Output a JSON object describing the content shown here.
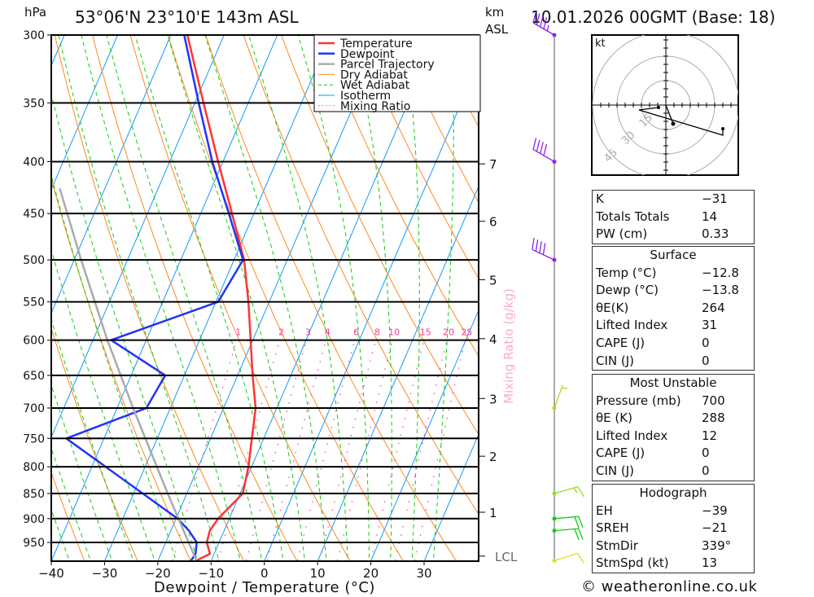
{
  "header": {
    "pressure_unit": "hPa",
    "location": "53°06'N 23°10'E 143m ASL",
    "km_label": "km",
    "asl_label": "ASL",
    "datetime": "10.01.2026 00GMT (Base: 18)"
  },
  "chart_data": {
    "type": "line",
    "title": "53°06'N 23°10'E 143m ASL",
    "xlabel": "Dewpoint / Temperature (°C)",
    "ylabel": "hPa",
    "xlim": [
      -40,
      40
    ],
    "ylim": [
      990,
      300
    ],
    "x_ticks": [
      "−40",
      "−30",
      "−20",
      "−10",
      "0",
      "10",
      "20",
      "30"
    ],
    "x_tick_values": [
      -40,
      -30,
      -20,
      -10,
      0,
      10,
      20,
      30
    ],
    "p_ticks": [
      "300",
      "350",
      "400",
      "450",
      "500",
      "550",
      "600",
      "650",
      "700",
      "750",
      "800",
      "850",
      "900",
      "950"
    ],
    "p_tick_values": [
      300,
      350,
      400,
      450,
      500,
      550,
      600,
      650,
      700,
      750,
      800,
      850,
      900,
      950
    ],
    "km_ticks": [
      {
        "label": "7",
        "p": 402
      },
      {
        "label": "6",
        "p": 458
      },
      {
        "label": "5",
        "p": 523
      },
      {
        "label": "4",
        "p": 598
      },
      {
        "label": "3",
        "p": 685
      },
      {
        "label": "2",
        "p": 781
      },
      {
        "label": "1",
        "p": 887
      },
      {
        "label": "LCL",
        "p": 980
      }
    ],
    "legend": [
      {
        "label": "Temperature",
        "color": "#ff3333",
        "style": "thick"
      },
      {
        "label": "Dewpoint",
        "color": "#2233ff",
        "style": "thick"
      },
      {
        "label": "Parcel Trajectory",
        "color": "#aaaaaa",
        "style": "thick"
      },
      {
        "label": "Dry Adiabat",
        "color": "#ff8822",
        "style": "thin"
      },
      {
        "label": "Wet Adiabat",
        "color": "#11cc11",
        "style": "dashed"
      },
      {
        "label": "Isotherm",
        "color": "#1199ff",
        "style": "thin"
      },
      {
        "label": "Mixing Ratio",
        "color": "#ff3399",
        "style": "dotted"
      }
    ],
    "series": [
      {
        "name": "Temperature",
        "color": "#ff3333",
        "points": [
          [
            990,
            -12.8
          ],
          [
            975,
            -10.8
          ],
          [
            950,
            -12.3
          ],
          [
            925,
            -12.7
          ],
          [
            900,
            -12.1
          ],
          [
            850,
            -9.5
          ],
          [
            800,
            -10.6
          ],
          [
            700,
            -14.0
          ],
          [
            650,
            -17.2
          ],
          [
            600,
            -20.4
          ],
          [
            550,
            -23.9
          ],
          [
            500,
            -28.1
          ],
          [
            450,
            -34.1
          ],
          [
            400,
            -40.9
          ],
          [
            350,
            -48.4
          ],
          [
            300,
            -56.9
          ]
        ]
      },
      {
        "name": "Dewpoint",
        "color": "#2233ff",
        "points": [
          [
            990,
            -13.8
          ],
          [
            975,
            -13.5
          ],
          [
            950,
            -14.2
          ],
          [
            925,
            -16.6
          ],
          [
            900,
            -19.7
          ],
          [
            750,
            -47.1
          ],
          [
            700,
            -34.5
          ],
          [
            650,
            -33.6
          ],
          [
            600,
            -46.6
          ],
          [
            550,
            -29.6
          ],
          [
            500,
            -28.3
          ],
          [
            450,
            -34.7
          ],
          [
            400,
            -42.0
          ],
          [
            350,
            -49.3
          ],
          [
            300,
            -57.5
          ]
        ]
      },
      {
        "name": "Parcel Trajectory",
        "color": "#aaaaaa",
        "points": [
          [
            990,
            -12.8
          ],
          [
            850,
            -23.6
          ],
          [
            700,
            -37.0
          ],
          [
            600,
            -47.3
          ],
          [
            500,
            -58.7
          ],
          [
            425,
            -68.5
          ]
        ]
      }
    ],
    "isotherms": [
      -110,
      -100,
      -90,
      -80,
      -70,
      -60,
      -50,
      -40,
      -30,
      -20,
      -10,
      0,
      10,
      20,
      30,
      40
    ],
    "dry_adiabats_theta_k": [
      230,
      240,
      250,
      260,
      270,
      280,
      290,
      300,
      310,
      320,
      330,
      340,
      350,
      360,
      370,
      380,
      390,
      400,
      410,
      420,
      430,
      440,
      450
    ],
    "wet_adiabats_t1000": [
      -40,
      -36,
      -32,
      -28,
      -24,
      -20,
      -16,
      -12,
      -8,
      -4,
      0,
      4,
      8,
      12,
      16,
      20,
      24,
      28,
      32
    ],
    "mixing_ratios": [
      "1",
      "2",
      "3",
      "4",
      "6",
      "8",
      "10",
      "15",
      "20",
      "25"
    ],
    "mixing_ratio_label": "Mixing Ratio (g/kg)",
    "winds": [
      {
        "p": 300,
        "dir": 300,
        "spd": 45,
        "color": "#8822ee"
      },
      {
        "p": 400,
        "dir": 300,
        "spd": 40,
        "color": "#8822ee"
      },
      {
        "p": 500,
        "dir": 295,
        "spd": 40,
        "color": "#8822ee"
      },
      {
        "p": 700,
        "dir": 20,
        "spd": 5,
        "color": "#aadd22"
      },
      {
        "p": 850,
        "dir": 74,
        "spd": 15,
        "color": "#99dd22"
      },
      {
        "p": 900,
        "dir": 85,
        "spd": 20,
        "color": "#11cc11"
      },
      {
        "p": 925,
        "dir": 85,
        "spd": 20,
        "color": "#11cc11"
      },
      {
        "p": 990,
        "dir": 73,
        "spd": 10,
        "color": "#dddd22"
      }
    ],
    "hodograph": {
      "unit": "kt",
      "rings": [
        "15",
        "30",
        "45"
      ],
      "ring_values": [
        15,
        30,
        45
      ],
      "path_uv": [
        [
          -4.5,
          -1.5
        ],
        [
          -16.5,
          -3
        ],
        [
          35,
          -18.5
        ],
        [
          35,
          -14.5
        ]
      ],
      "storm_motion_uv": [
        4.5,
        -11.5
      ]
    }
  },
  "indices": {
    "top": [
      {
        "label": "K",
        "value": "−31"
      },
      {
        "label": "Totals Totals",
        "value": "14"
      },
      {
        "label": "PW (cm)",
        "value": "0.33"
      }
    ],
    "surface": {
      "title": "Surface",
      "rows": [
        {
          "label": "Temp (°C)",
          "value": "−12.8"
        },
        {
          "label": "Dewp (°C)",
          "value": "−13.8"
        },
        {
          "label": "θE(K)",
          "value": "264"
        },
        {
          "label": "Lifted Index",
          "value": "31"
        },
        {
          "label": "CAPE (J)",
          "value": "0"
        },
        {
          "label": "CIN (J)",
          "value": "0"
        }
      ]
    },
    "most_unstable": {
      "title": "Most Unstable",
      "rows": [
        {
          "label": "Pressure (mb)",
          "value": "700"
        },
        {
          "label": "θE (K)",
          "value": "288"
        },
        {
          "label": "Lifted Index",
          "value": "12"
        },
        {
          "label": "CAPE (J)",
          "value": "0"
        },
        {
          "label": "CIN (J)",
          "value": "0"
        }
      ]
    },
    "hodograph": {
      "title": "Hodograph",
      "rows": [
        {
          "label": "EH",
          "value": "−39"
        },
        {
          "label": "SREH",
          "value": "−21"
        },
        {
          "label": "StmDir",
          "value": "339°"
        },
        {
          "label": "StmSpd (kt)",
          "value": "13"
        }
      ]
    }
  },
  "footer": {
    "copyright": "© weatheronline.co.uk"
  }
}
